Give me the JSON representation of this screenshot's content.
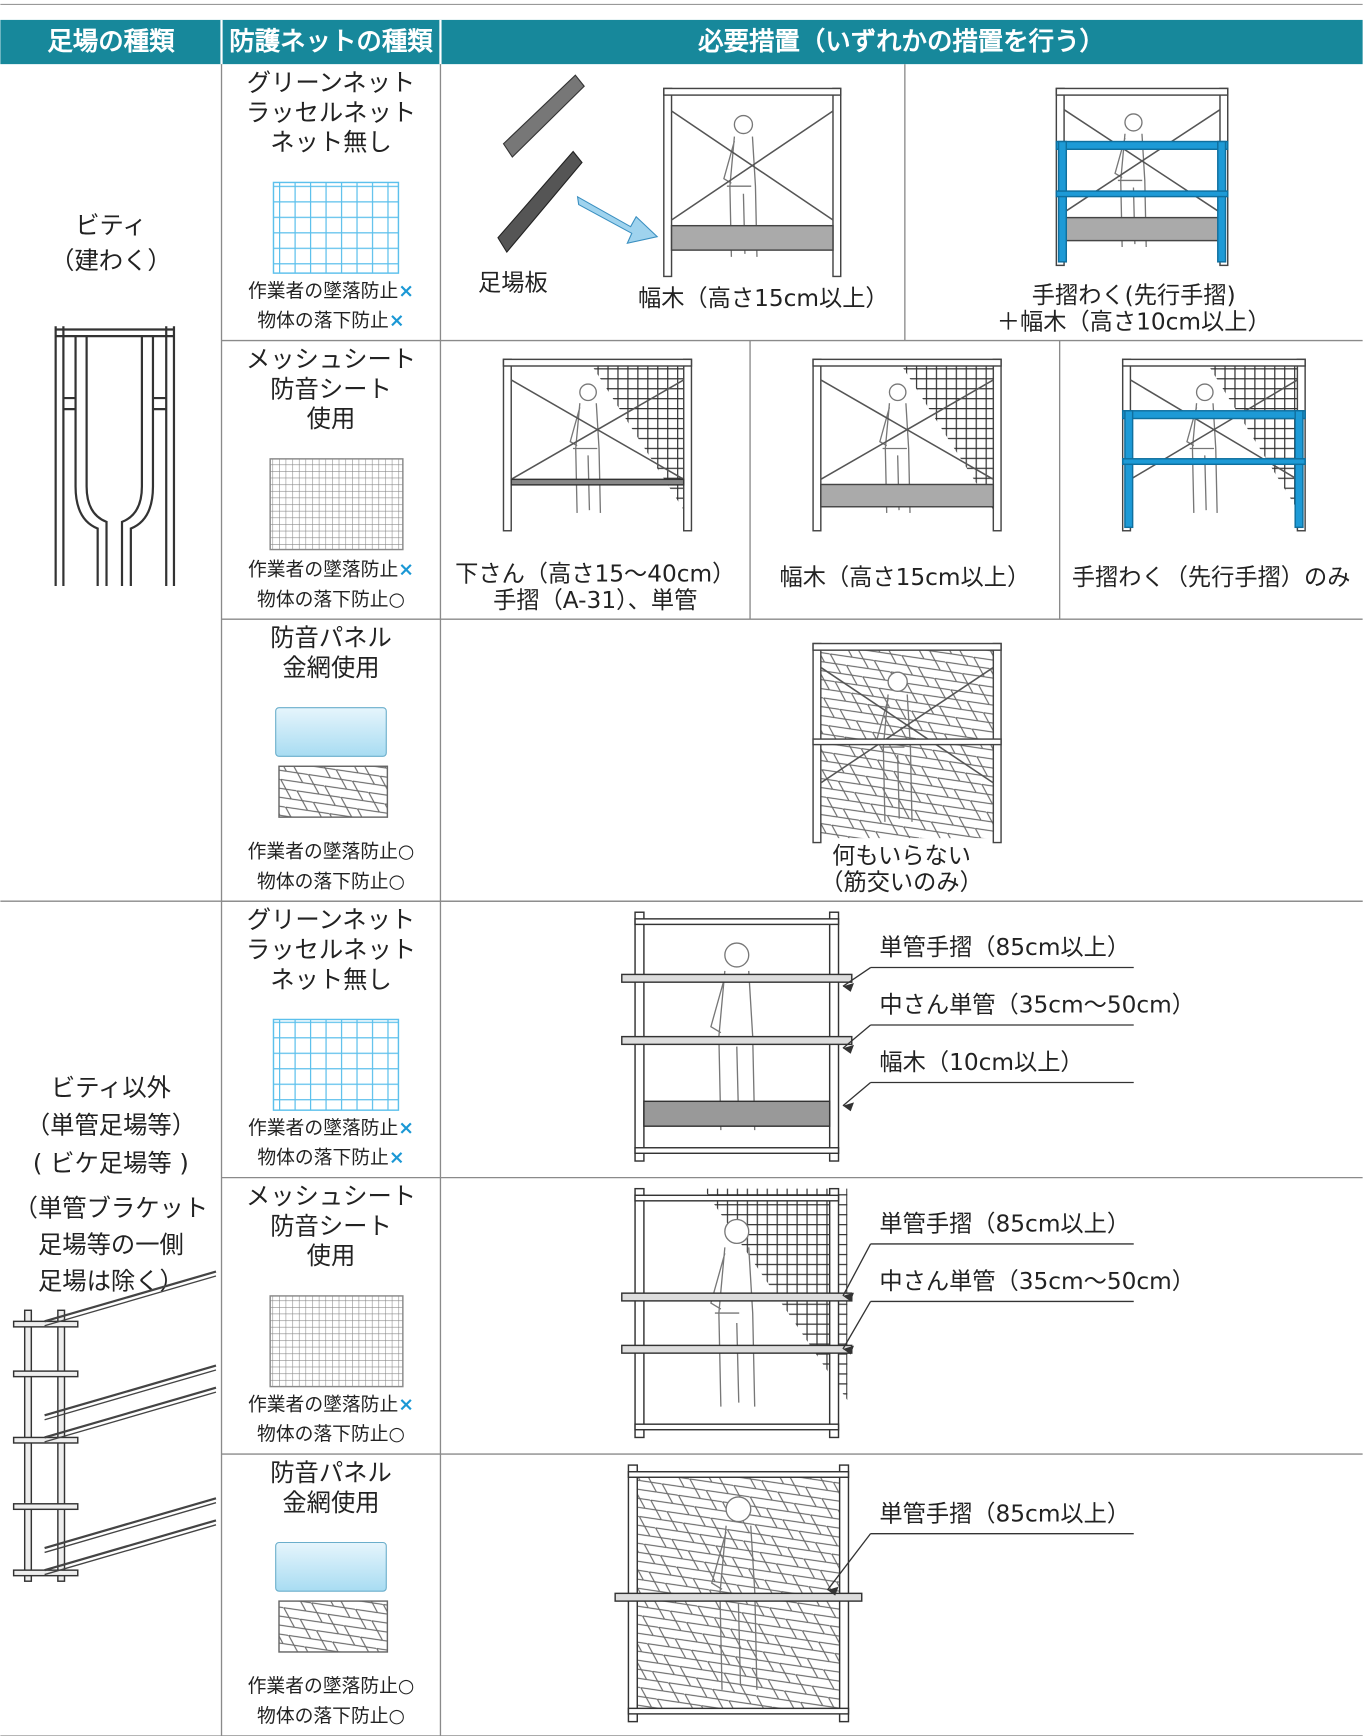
{
  "table": {
    "header": [
      "足場の種類",
      "防護ネットの種類",
      "必要措置（いずれかの措置を行う）"
    ],
    "groups": [
      {
        "scaffold_lines": [
          "ビティ",
          "（建わく）"
        ],
        "rows": [
          {
            "net_lines": [
              "グリーンネット",
              "ラッセルネット",
              "ネット無し"
            ],
            "worker_fall": {
              "text": "作業者の墜落防止",
              "mark": "×",
              "mark_color": "#1b98d5"
            },
            "object_fall": {
              "text": "物体の落下防止",
              "mark": "×",
              "mark_color": "#1b98d5"
            },
            "measures": [
              {
                "label": "足場板",
                "caption_lines": [
                  "幅木（高さ15cm以上）"
                ]
              },
              {
                "caption_lines": [
                  "手摺わく(先行手摺)",
                  "＋幅木（高さ10cm以上）"
                ]
              }
            ]
          },
          {
            "net_lines": [
              "メッシュシート",
              "防音シート",
              "使用"
            ],
            "worker_fall": {
              "text": "作業者の墜落防止",
              "mark": "×",
              "mark_color": "#1b98d5"
            },
            "object_fall": {
              "text": "物体の落下防止",
              "mark": "○",
              "mark_color": "#222222"
            },
            "measures": [
              {
                "caption_lines": [
                  "下さん（高さ15～40cm）",
                  "手摺（A-31）、単管"
                ]
              },
              {
                "caption_lines": [
                  "幅木（高さ15cm以上）"
                ]
              },
              {
                "caption_lines": [
                  "手摺わく（先行手摺）のみ"
                ]
              }
            ]
          },
          {
            "net_lines": [
              "防音パネル",
              "金網使用"
            ],
            "worker_fall": {
              "text": "作業者の墜落防止",
              "mark": "○",
              "mark_color": "#222222"
            },
            "object_fall": {
              "text": "物体の落下防止",
              "mark": "○",
              "mark_color": "#222222"
            },
            "measures": [
              {
                "caption_lines": [
                  "何もいらない",
                  "（筋交いのみ）"
                ]
              }
            ]
          }
        ]
      },
      {
        "scaffold_lines": [
          "ビティ以外",
          "（単管足場等）",
          "( ビケ足場等 )"
        ],
        "note_lines": [
          "（単管ブラケット",
          "足場等の一側",
          "足場は除く）"
        ],
        "rows": [
          {
            "net_lines": [
              "グリーンネット",
              "ラッセルネット",
              "ネット無し"
            ],
            "worker_fall": {
              "text": "作業者の墜落防止",
              "mark": "×",
              "mark_color": "#1b98d5"
            },
            "object_fall": {
              "text": "物体の落下防止",
              "mark": "×",
              "mark_color": "#1b98d5"
            },
            "measures": [
              {
                "callouts": [
                  "単管手摺（85cm以上）",
                  "中さん単管（35cm～50cm）",
                  "幅木（10cm以上）"
                ]
              }
            ]
          },
          {
            "net_lines": [
              "メッシュシート",
              "防音シート",
              "使用"
            ],
            "worker_fall": {
              "text": "作業者の墜落防止",
              "mark": "×",
              "mark_color": "#1b98d5"
            },
            "object_fall": {
              "text": "物体の落下防止",
              "mark": "○",
              "mark_color": "#222222"
            },
            "measures": [
              {
                "callouts": [
                  "単管手摺（85cm以上）",
                  "中さん単管（35cm～50cm）"
                ]
              }
            ]
          },
          {
            "net_lines": [
              "防音パネル",
              "金網使用"
            ],
            "worker_fall": {
              "text": "作業者の墜落防止",
              "mark": "○",
              "mark_color": "#222222"
            },
            "object_fall": {
              "text": "物体の落下防止",
              "mark": "○",
              "mark_color": "#222222"
            },
            "measures": [
              {
                "callouts": [
                  "単管手摺（85cm以上）"
                ]
              }
            ]
          }
        ]
      }
    ]
  }
}
